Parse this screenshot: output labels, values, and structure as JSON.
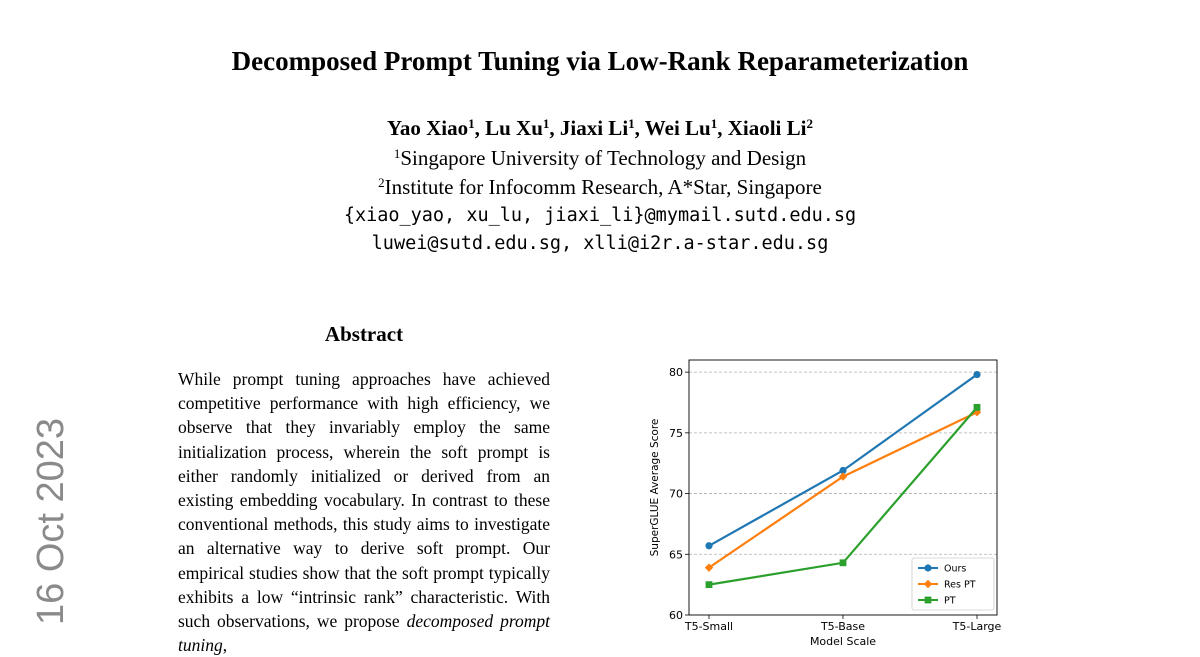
{
  "side_label": "16 Oct 2023",
  "title": "Decomposed Prompt Tuning via Low-Rank Reparameterization",
  "authors": [
    {
      "name": "Yao Xiao",
      "aff": "1"
    },
    {
      "name": "Lu Xu",
      "aff": "1"
    },
    {
      "name": "Jiaxi Li",
      "aff": "1"
    },
    {
      "name": "Wei Lu",
      "aff": "1"
    },
    {
      "name": "Xiaoli Li",
      "aff": "2"
    }
  ],
  "affiliations": [
    {
      "mark": "1",
      "text": "Singapore University of Technology and Design"
    },
    {
      "mark": "2",
      "text": "Institute for Infocomm Research, A*Star, Singapore"
    }
  ],
  "emails": [
    "{xiao_yao, xu_lu, jiaxi_li}@mymail.sutd.edu.sg",
    "luwei@sutd.edu.sg, xlli@i2r.a-star.edu.sg"
  ],
  "abstract_heading": "Abstract",
  "abstract": {
    "text_before": "While prompt tuning approaches have achieved competitive performance with high efficiency, we observe that they invariably employ the same initialization process, wherein the soft prompt is either randomly initialized or derived from an existing embedding vocabulary. In contrast to these conventional methods, this study aims to investigate an alternative way to derive soft prompt. Our empirical studies show that the soft prompt typically exhibits a low “intrinsic rank” characteristic. With such observations, we propose ",
    "emphasis": "decomposed prompt tuning",
    "text_after": ","
  },
  "chart_data": {
    "type": "line",
    "categories": [
      "T5-Small",
      "T5-Base",
      "T5-Large"
    ],
    "xlabel": "Model Scale",
    "ylabel": "SuperGLUE Average Score",
    "ylim": [
      60,
      81
    ],
    "yticks": [
      60,
      65,
      70,
      75,
      80
    ],
    "grid": "horizontal-dashed",
    "legend_position": "lower-right",
    "series": [
      {
        "name": "Ours",
        "values": [
          65.7,
          71.9,
          79.8
        ],
        "color": "#1f77b4",
        "marker": "circle"
      },
      {
        "name": "Res PT",
        "values": [
          63.9,
          71.4,
          76.7
        ],
        "color": "#ff7f0e",
        "marker": "diamond"
      },
      {
        "name": "PT",
        "values": [
          62.5,
          64.3,
          77.1
        ],
        "color": "#2ca02c",
        "marker": "square"
      }
    ]
  }
}
